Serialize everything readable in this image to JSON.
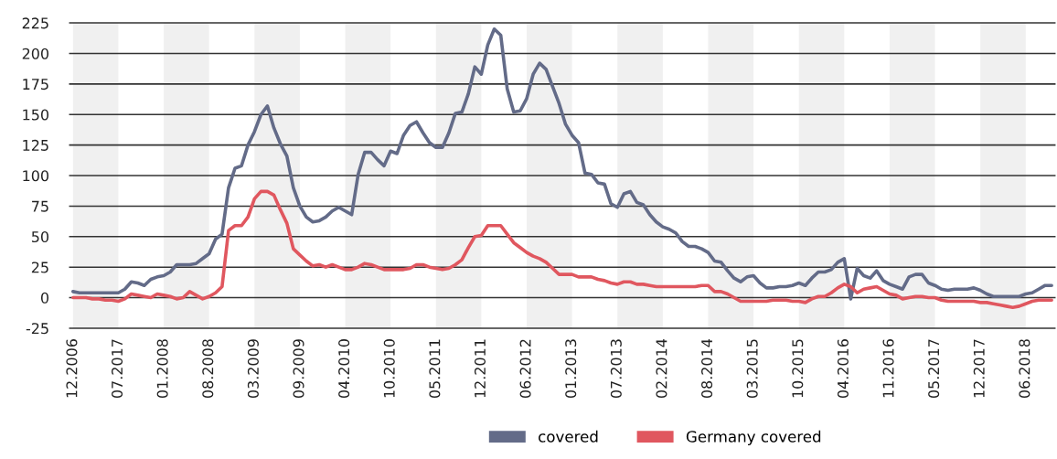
{
  "chart_data": {
    "type": "line",
    "categories": [
      "12.2006",
      null,
      null,
      null,
      null,
      null,
      null,
      "07.2017",
      null,
      null,
      null,
      null,
      null,
      null,
      "01.2008",
      null,
      null,
      null,
      null,
      null,
      null,
      "08.2008",
      null,
      null,
      null,
      null,
      null,
      null,
      "03.2009",
      null,
      null,
      null,
      null,
      null,
      null,
      "09.2009",
      null,
      null,
      null,
      null,
      null,
      null,
      "04.2010",
      null,
      null,
      null,
      null,
      null,
      null,
      "10.2010",
      null,
      null,
      null,
      null,
      null,
      null,
      "05.2011",
      null,
      null,
      null,
      null,
      null,
      null,
      "12.2011",
      null,
      null,
      null,
      null,
      null,
      null,
      "06.2012",
      null,
      null,
      null,
      null,
      null,
      null,
      "01.2013",
      null,
      null,
      null,
      null,
      null,
      null,
      "07.2013",
      null,
      null,
      null,
      null,
      null,
      null,
      "02.2014",
      null,
      null,
      null,
      null,
      null,
      null,
      "08.2014",
      null,
      null,
      null,
      null,
      null,
      null,
      "03.2015",
      null,
      null,
      null,
      null,
      null,
      null,
      "10.2015",
      null,
      null,
      null,
      null,
      null,
      null,
      "04.2016",
      null,
      null,
      null,
      null,
      null,
      null,
      "11.2016",
      null,
      null,
      null,
      null,
      null,
      null,
      "05.2017",
      null,
      null,
      null,
      null,
      null,
      null,
      "12.2017",
      null,
      null,
      null,
      null,
      null,
      null,
      "06.2018",
      null,
      null,
      null,
      null
    ],
    "series": [
      {
        "name": "covered",
        "color": "#636b88",
        "values": [
          5,
          4,
          4,
          4,
          4,
          4,
          4,
          4,
          7,
          13,
          12,
          10,
          15,
          17,
          18,
          21,
          27,
          27,
          27,
          28,
          32,
          36,
          48,
          52,
          90,
          106,
          108,
          125,
          136,
          150,
          157,
          139,
          126,
          116,
          90,
          75,
          66,
          62,
          63,
          66,
          71,
          74,
          71,
          68,
          101,
          119,
          119,
          113,
          108,
          120,
          118,
          133,
          141,
          144,
          135,
          127,
          123,
          123,
          135,
          151,
          152,
          167,
          189,
          183,
          207,
          220,
          215,
          171,
          152,
          153,
          163,
          183,
          192,
          187,
          173,
          159,
          142,
          133,
          127,
          102,
          101,
          94,
          93,
          77,
          74,
          85,
          87,
          78,
          76,
          68,
          62,
          58,
          56,
          53,
          46,
          42,
          42,
          40,
          37,
          30,
          29,
          22,
          16,
          13,
          17,
          18,
          12,
          8,
          8,
          9,
          9,
          10,
          12,
          10,
          16,
          21,
          21,
          23,
          29,
          32,
          -1,
          24,
          18,
          16,
          22,
          14,
          11,
          9,
          7,
          17,
          19,
          19,
          12,
          10,
          7,
          6,
          7,
          7,
          7,
          8,
          6,
          3,
          1,
          1,
          1,
          1,
          1,
          3,
          4,
          7,
          10,
          10
        ]
      },
      {
        "name": "Germany covered",
        "color": "#e0575f",
        "values": [
          0,
          0,
          0,
          -1,
          -1,
          -2,
          -2,
          -3,
          -1,
          3,
          2,
          1,
          0,
          3,
          2,
          1,
          -1,
          0,
          5,
          2,
          -1,
          1,
          4,
          9,
          55,
          59,
          59,
          66,
          81,
          87,
          87,
          84,
          72,
          61,
          40,
          35,
          30,
          26,
          27,
          25,
          27,
          25,
          23,
          23,
          25,
          28,
          27,
          25,
          23,
          23,
          23,
          23,
          24,
          27,
          27,
          25,
          24,
          23,
          24,
          27,
          31,
          41,
          50,
          51,
          59,
          59,
          59,
          52,
          45,
          41,
          37,
          34,
          32,
          29,
          24,
          19,
          19,
          19,
          17,
          17,
          17,
          15,
          14,
          12,
          11,
          13,
          13,
          11,
          11,
          10,
          9,
          9,
          9,
          9,
          9,
          9,
          9,
          10,
          10,
          5,
          5,
          3,
          0,
          -3,
          -3,
          -3,
          -3,
          -3,
          -2,
          -2,
          -2,
          -3,
          -3,
          -4,
          -1,
          1,
          1,
          4,
          8,
          11,
          9,
          4,
          7,
          8,
          9,
          6,
          3,
          2,
          -1,
          0,
          1,
          1,
          0,
          0,
          -2,
          -3,
          -3,
          -3,
          -3,
          -3,
          -4,
          -4,
          -5,
          -6,
          -7,
          -8,
          -7,
          -5,
          -3,
          -2,
          -2,
          -2
        ]
      }
    ],
    "ylim": [
      -25,
      225
    ],
    "yticks": [
      -25,
      0,
      25,
      50,
      75,
      100,
      125,
      150,
      175,
      200,
      225
    ],
    "bands": [
      {
        "axis": "x",
        "from": "12.2006",
        "to": "07.2017",
        "color": "#f0f0f0"
      },
      {
        "axis": "x",
        "from": "01.2008",
        "to": "08.2008",
        "color": "#f0f0f0"
      },
      {
        "axis": "x",
        "from": "03.2009",
        "to": "09.2009",
        "color": "#f0f0f0"
      },
      {
        "axis": "x",
        "from": "04.2010",
        "to": "10.2010",
        "color": "#f0f0f0"
      },
      {
        "axis": "x",
        "from": "05.2011",
        "to": "12.2011",
        "color": "#f0f0f0"
      },
      {
        "axis": "x",
        "from": "06.2012",
        "to": "01.2013",
        "color": "#f0f0f0"
      },
      {
        "axis": "x",
        "from": "07.2013",
        "to": "02.2014",
        "color": "#f0f0f0"
      },
      {
        "axis": "x",
        "from": "08.2014",
        "to": "03.2015",
        "color": "#f0f0f0"
      },
      {
        "axis": "x",
        "from": "10.2015",
        "to": "04.2016",
        "color": "#f0f0f0"
      },
      {
        "axis": "x",
        "from": "11.2016",
        "to": "05.2017",
        "color": "#f0f0f0"
      },
      {
        "axis": "x",
        "from": "12.2017",
        "to": "06.2018",
        "color": "#f0f0f0"
      }
    ],
    "grid": "y",
    "legend": "bottom",
    "line_style": "solid"
  }
}
